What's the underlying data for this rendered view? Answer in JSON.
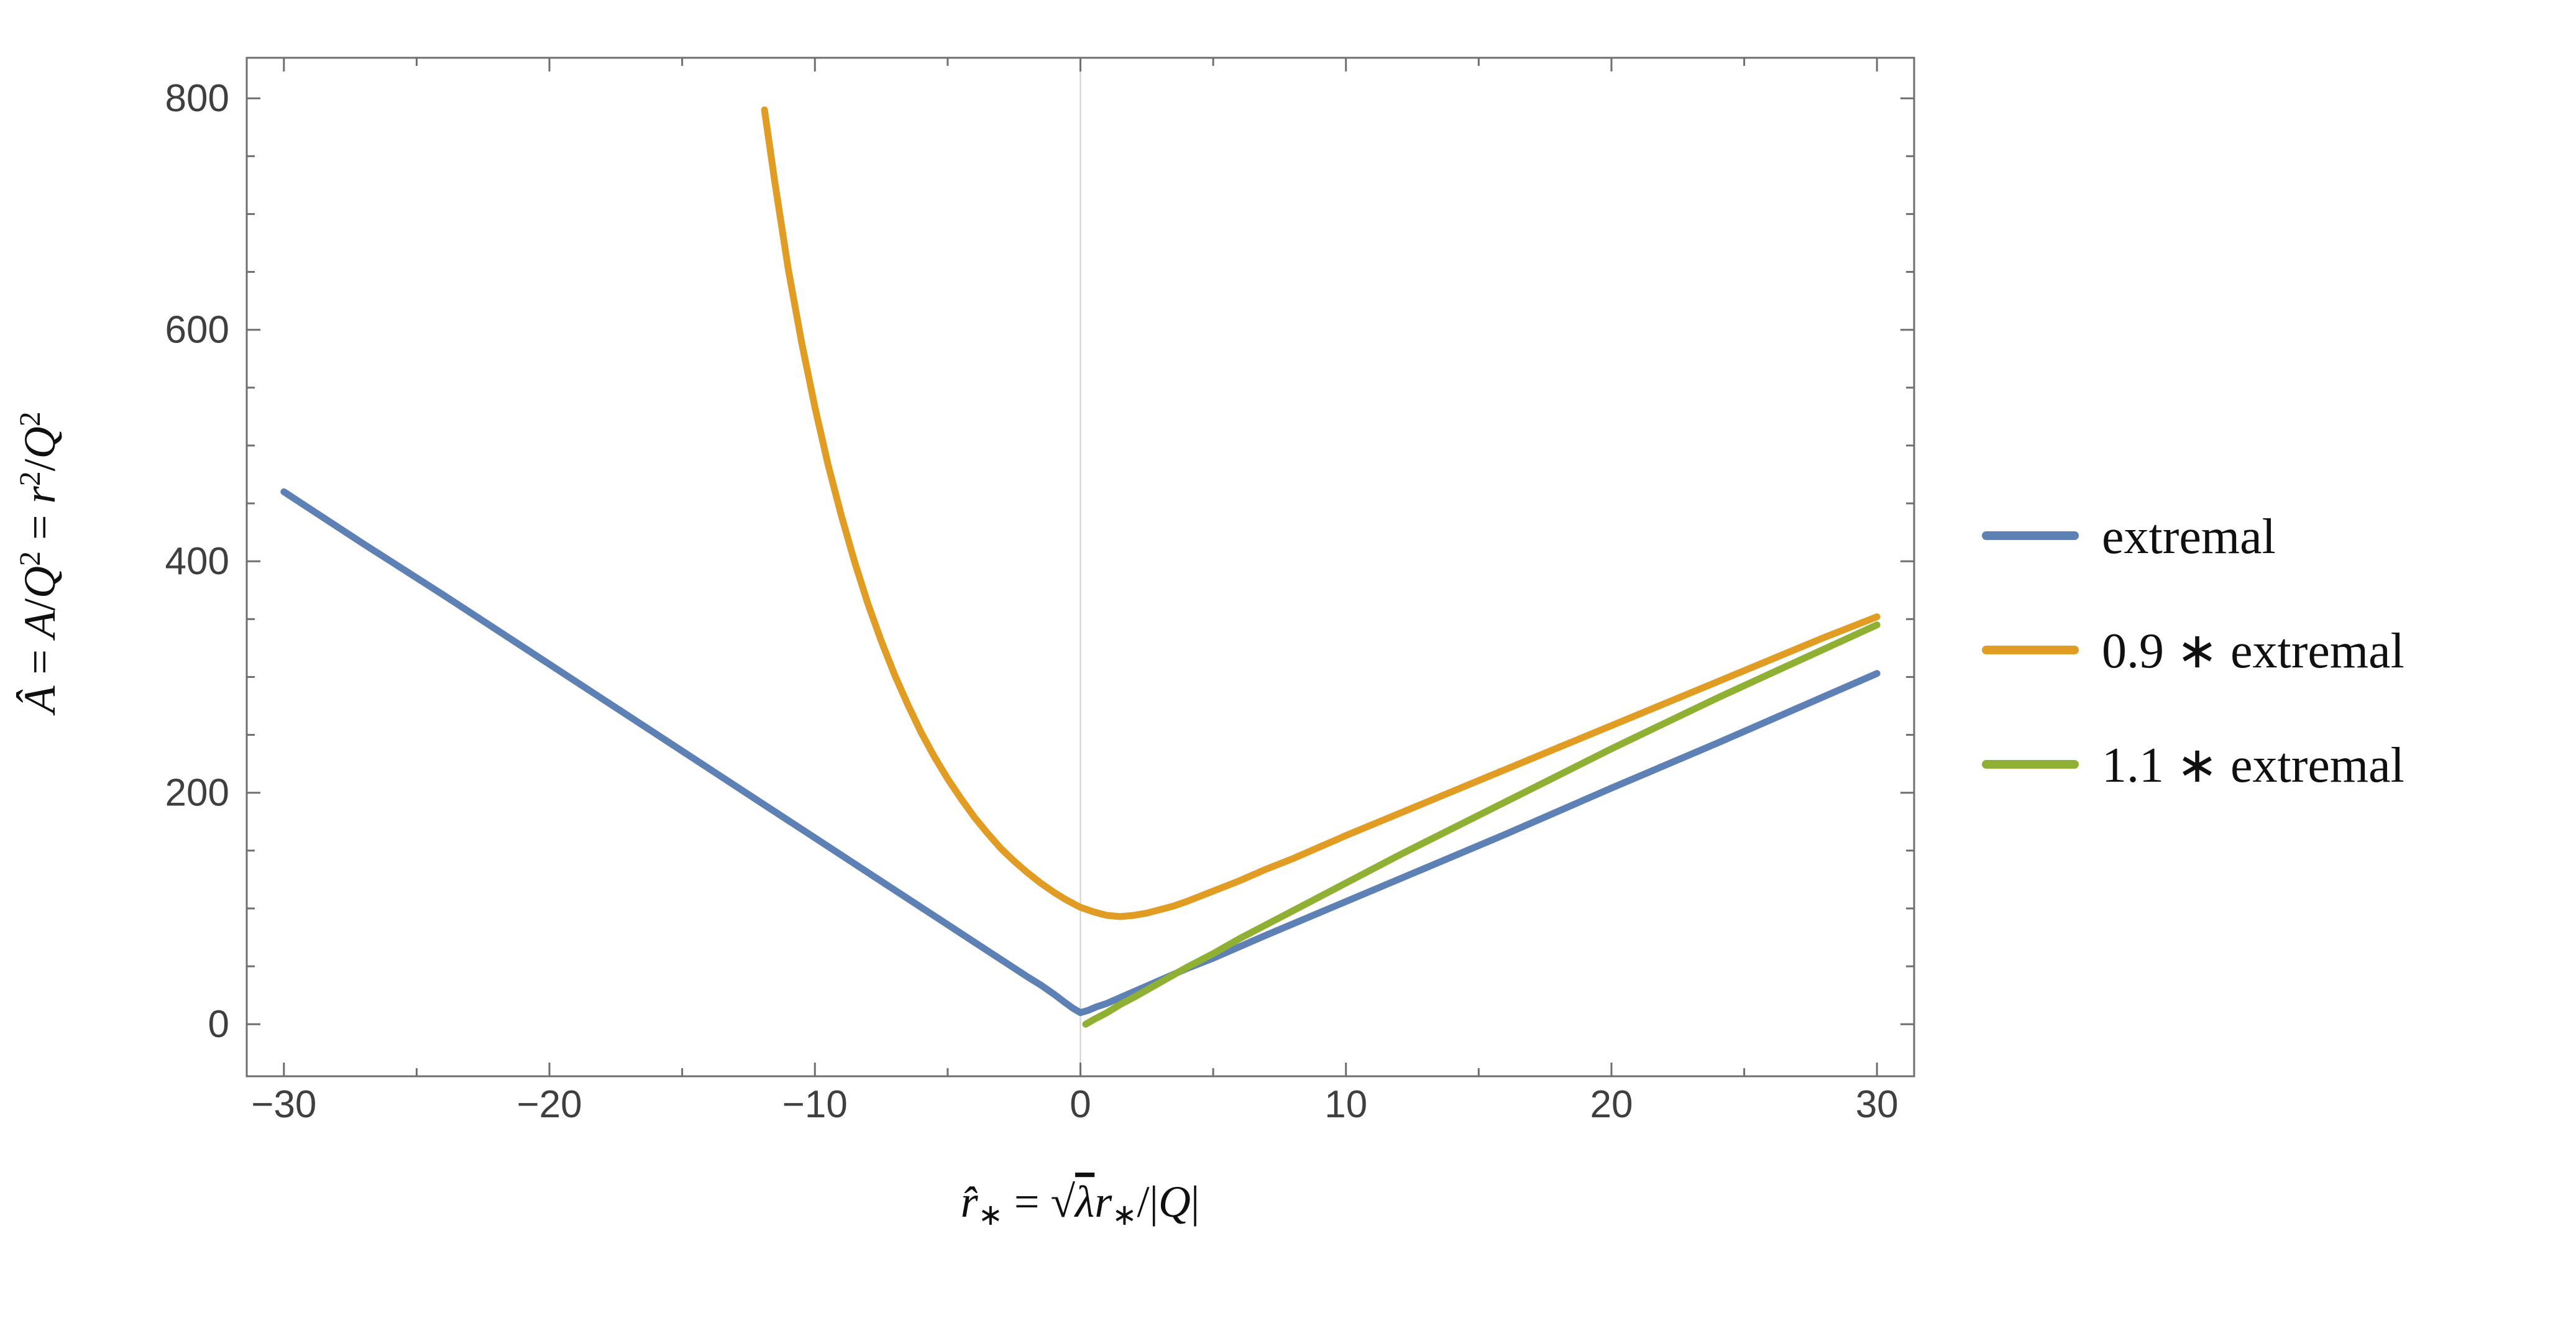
{
  "chart_data": {
    "type": "line",
    "title": "",
    "xlabel": "r̂∗ = √λ r∗/|Q|",
    "ylabel": "Â = A/Q² = r²/Q²",
    "xlim": [
      -31.4,
      31.4
    ],
    "ylim": [
      -45,
      835
    ],
    "x_ticks": [
      -30,
      -20,
      -10,
      0,
      10,
      20,
      30
    ],
    "x_tick_labels": [
      "−30",
      "−20",
      "−10",
      "0",
      "10",
      "20",
      "30"
    ],
    "x_minor_ticks": [
      -25,
      -15,
      -5,
      5,
      15,
      25
    ],
    "y_ticks": [
      0,
      200,
      400,
      600,
      800
    ],
    "y_tick_labels": [
      "0",
      "200",
      "400",
      "600",
      "800"
    ],
    "y_minor_ticks": [
      50,
      100,
      150,
      250,
      300,
      350,
      450,
      500,
      550,
      650,
      700,
      750
    ],
    "grid_x": [
      0
    ],
    "grid_color": "#cfcfcf",
    "frame_color": "#6f6f6f",
    "legend_position": "right-outside",
    "xlabel_parts": [
      {
        "t": "r̂",
        "i": 1
      },
      {
        "t": "∗",
        "sub": 1
      },
      {
        "t": " = "
      },
      {
        "t": "√"
      },
      {
        "t": "λ",
        "i": 1,
        "over": 1
      },
      {
        "t": "r",
        "i": 1
      },
      {
        "t": "∗",
        "sub": 1
      },
      {
        "t": "/|"
      },
      {
        "t": "Q",
        "i": 1
      },
      {
        "t": "|"
      }
    ],
    "ylabel_parts": [
      {
        "t": "Â",
        "i": 1
      },
      {
        "t": " = "
      },
      {
        "t": "A",
        "i": 1
      },
      {
        "t": "/"
      },
      {
        "t": "Q",
        "i": 1
      },
      {
        "t": "2",
        "sup": 1
      },
      {
        "t": " = "
      },
      {
        "t": "r",
        "i": 1
      },
      {
        "t": "2",
        "sup": 1
      },
      {
        "t": "/"
      },
      {
        "t": "Q",
        "i": 1
      },
      {
        "t": "2",
        "sup": 1
      }
    ],
    "series": [
      {
        "name": "extremal",
        "color": "#5e81b5",
        "points": [
          [
            -30,
            460
          ],
          [
            -27,
            415
          ],
          [
            -24,
            371
          ],
          [
            -21,
            326
          ],
          [
            -18,
            281
          ],
          [
            -15,
            236
          ],
          [
            -12,
            191
          ],
          [
            -10,
            161
          ],
          [
            -8,
            131
          ],
          [
            -6,
            101
          ],
          [
            -5,
            86
          ],
          [
            -4,
            71
          ],
          [
            -3,
            56
          ],
          [
            -2,
            41
          ],
          [
            -1.5,
            34
          ],
          [
            -1,
            26
          ],
          [
            -0.6,
            19
          ],
          [
            -0.3,
            14
          ],
          [
            0,
            10
          ],
          [
            0.3,
            12
          ],
          [
            0.6,
            15
          ],
          [
            1,
            18
          ],
          [
            1.5,
            23
          ],
          [
            2,
            28
          ],
          [
            3,
            38
          ],
          [
            4,
            48
          ],
          [
            5,
            57
          ],
          [
            7,
            77
          ],
          [
            10,
            106
          ],
          [
            13,
            135
          ],
          [
            16,
            164
          ],
          [
            20,
            204
          ],
          [
            24,
            243
          ],
          [
            27,
            273
          ],
          [
            30,
            303
          ]
        ]
      },
      {
        "name": "0.9 ∗ extremal",
        "color": "#e19c24",
        "points": [
          [
            -11.9,
            790
          ],
          [
            -11.5,
            726
          ],
          [
            -11,
            652
          ],
          [
            -10.5,
            589
          ],
          [
            -10,
            533
          ],
          [
            -9.5,
            483
          ],
          [
            -9,
            439
          ],
          [
            -8.5,
            399
          ],
          [
            -8,
            363
          ],
          [
            -7.5,
            331
          ],
          [
            -7,
            302
          ],
          [
            -6.5,
            276
          ],
          [
            -6,
            252
          ],
          [
            -5.5,
            231
          ],
          [
            -5,
            212
          ],
          [
            -4.5,
            195
          ],
          [
            -4,
            179
          ],
          [
            -3.5,
            165
          ],
          [
            -3,
            152
          ],
          [
            -2.5,
            141
          ],
          [
            -2,
            131
          ],
          [
            -1.5,
            122
          ],
          [
            -1,
            114
          ],
          [
            -0.5,
            107
          ],
          [
            0,
            101
          ],
          [
            0.5,
            97
          ],
          [
            1,
            94
          ],
          [
            1.5,
            93
          ],
          [
            2,
            94
          ],
          [
            2.5,
            96
          ],
          [
            3,
            99
          ],
          [
            3.5,
            102
          ],
          [
            4,
            106
          ],
          [
            5,
            115
          ],
          [
            6,
            124
          ],
          [
            7,
            134
          ],
          [
            8,
            143
          ],
          [
            9,
            153
          ],
          [
            10,
            163
          ],
          [
            12,
            182
          ],
          [
            14,
            201
          ],
          [
            16,
            220
          ],
          [
            18,
            239
          ],
          [
            20,
            258
          ],
          [
            22,
            277
          ],
          [
            24,
            296
          ],
          [
            26,
            315
          ],
          [
            28,
            334
          ],
          [
            30,
            352
          ]
        ]
      },
      {
        "name": "1.1 ∗ extremal",
        "color": "#8fb032",
        "points": [
          [
            0.2,
            0
          ],
          [
            0.5,
            4
          ],
          [
            1,
            10
          ],
          [
            1.5,
            17
          ],
          [
            2,
            23
          ],
          [
            3,
            36
          ],
          [
            4,
            49
          ],
          [
            5,
            61
          ],
          [
            6,
            74
          ],
          [
            7,
            86
          ],
          [
            8,
            98
          ],
          [
            10,
            122
          ],
          [
            12,
            146
          ],
          [
            14,
            169
          ],
          [
            16,
            192
          ],
          [
            18,
            215
          ],
          [
            20,
            238
          ],
          [
            22,
            260
          ],
          [
            24,
            282
          ],
          [
            26,
            303
          ],
          [
            28,
            324
          ],
          [
            30,
            345
          ]
        ]
      }
    ]
  }
}
